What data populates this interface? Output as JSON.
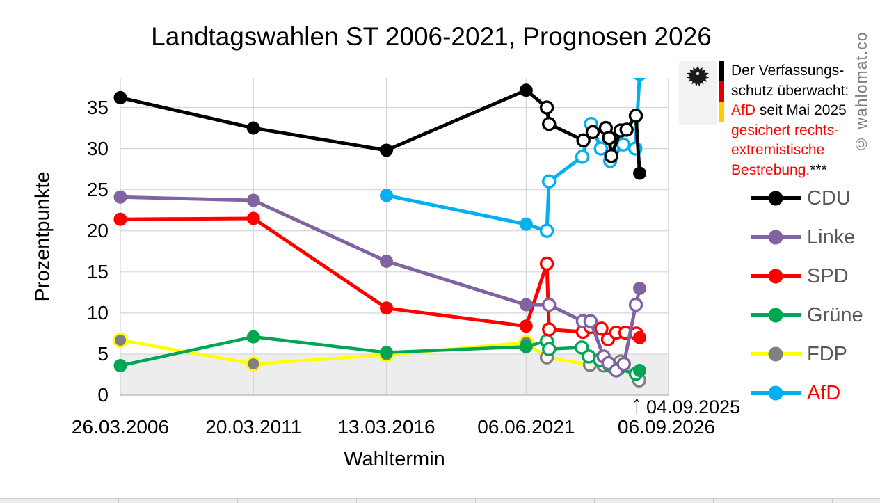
{
  "title": "Landtagswahlen ST 2006-2021, Prognosen 2026",
  "watermark": "© wahlomat.co",
  "note": {
    "icon": "bundesadler-icon",
    "flag_colors": [
      "#000000",
      "#DD0000",
      "#FFCC00"
    ],
    "lines": [
      [
        {
          "t": "Der Verfassungs-",
          "c": "black"
        }
      ],
      [
        {
          "t": "schutz überwacht:",
          "c": "black"
        }
      ],
      [
        {
          "t": "AfD",
          "c": "red"
        },
        {
          "t": " seit Mai 2025",
          "c": "black"
        }
      ],
      [
        {
          "t": "gesichert rechts-",
          "c": "red"
        }
      ],
      [
        {
          "t": "extremistische",
          "c": "red"
        }
      ],
      [
        {
          "t": "Bestrebung.",
          "c": "red"
        },
        {
          "t": "***",
          "c": "black"
        }
      ]
    ]
  },
  "poll_marker_annotation": {
    "arrow": "↑",
    "label": "04.09.2025"
  },
  "chart_data": {
    "type": "line",
    "title": "Landtagswahlen ST 2006-2021, Prognosen 2026",
    "xlabel": "Wahltermin",
    "ylabel": "Prozentpunkte",
    "ylim": [
      0,
      38.6
    ],
    "yticks": [
      0,
      5,
      10,
      15,
      20,
      25,
      30,
      35
    ],
    "grid": true,
    "legend_position": "right",
    "x_ticks": [
      {
        "label": "26.03.2006",
        "f": 0.0
      },
      {
        "label": "20.03.2011",
        "f": 0.2437
      },
      {
        "label": "13.03.2016",
        "f": 0.4873
      },
      {
        "label": "06.06.2021",
        "f": 0.7431
      },
      {
        "label": "06.09.2026",
        "f": 1.0
      }
    ],
    "threshold_band": {
      "from": 0,
      "to": 5,
      "color": "#EDEDED"
    },
    "election_results": {
      "dates": [
        "26.03.2006",
        "20.03.2011",
        "13.03.2016",
        "06.06.2021"
      ],
      "CDU": [
        36.2,
        32.5,
        29.8,
        37.1
      ],
      "Linke": [
        24.1,
        23.7,
        16.3,
        11.0
      ],
      "SPD": [
        21.4,
        21.5,
        10.6,
        8.4
      ],
      "Grüne": [
        3.6,
        7.1,
        5.2,
        5.9
      ],
      "FDP": [
        6.7,
        3.8,
        4.9,
        6.4
      ],
      "AfD": [
        null,
        null,
        24.3,
        20.8
      ]
    },
    "prognosis_2026": {
      "poll_date": "04.09.2025",
      "CDU": 27,
      "AfD": 39,
      "Linke": 13,
      "SPD": 7,
      "Grüne": 3,
      "FDP": 2
    },
    "series": [
      {
        "name": "FDP",
        "color": "#FFFF00",
        "marker_color": "#808080",
        "marker_ring": "#FFFF00",
        "width": 4.5,
        "points": [
          [
            0,
            6.7,
            "e"
          ],
          [
            0.2437,
            3.8,
            "e"
          ],
          [
            0.4873,
            4.9,
            "e"
          ],
          [
            0.7431,
            6.4,
            "e"
          ],
          [
            0.781,
            4.6,
            "p"
          ],
          [
            0.86,
            3.7,
            "p"
          ],
          [
            0.885,
            3.6,
            "p"
          ],
          [
            0.916,
            4.1,
            "p"
          ],
          [
            0.95,
            1.8,
            "p"
          ]
        ]
      },
      {
        "name": "Grüne",
        "color": "#00A651",
        "width": 4.5,
        "points": [
          [
            0,
            3.6,
            "e"
          ],
          [
            0.2437,
            7.1,
            "e"
          ],
          [
            0.4873,
            5.2,
            "e"
          ],
          [
            0.7431,
            5.9,
            "e"
          ],
          [
            0.781,
            6.6,
            "p"
          ],
          [
            0.785,
            5.6,
            "p"
          ],
          [
            0.845,
            5.8,
            "p"
          ],
          [
            0.858,
            4.7,
            "p"
          ],
          [
            0.878,
            4.3,
            "p"
          ],
          [
            0.896,
            3.6,
            "p"
          ],
          [
            0.912,
            3.2,
            "p"
          ],
          [
            0.944,
            2.6,
            "p"
          ],
          [
            0.951,
            3,
            "f"
          ]
        ]
      },
      {
        "name": "SPD",
        "color": "#FF0000",
        "width": 5,
        "points": [
          [
            0,
            21.4,
            "e"
          ],
          [
            0.2437,
            21.5,
            "e"
          ],
          [
            0.4873,
            10.6,
            "e"
          ],
          [
            0.7431,
            8.4,
            "e"
          ],
          [
            0.781,
            16,
            "p"
          ],
          [
            0.785,
            8,
            "p"
          ],
          [
            0.847,
            7.7,
            "p"
          ],
          [
            0.861,
            8.3,
            "p"
          ],
          [
            0.881,
            8.1,
            "p"
          ],
          [
            0.893,
            6.8,
            "p"
          ],
          [
            0.908,
            7.6,
            "p"
          ],
          [
            0.925,
            7.6,
            "p"
          ],
          [
            0.945,
            7.5,
            "p"
          ],
          [
            0.951,
            7,
            "f"
          ]
        ]
      },
      {
        "name": "Linke",
        "color": "#8064A2",
        "width": 5,
        "points": [
          [
            0,
            24.1,
            "e"
          ],
          [
            0.2437,
            23.7,
            "e"
          ],
          [
            0.4873,
            16.3,
            "e"
          ],
          [
            0.7431,
            11,
            "e"
          ],
          [
            0.785,
            11,
            "p"
          ],
          [
            0.847,
            9,
            "p"
          ],
          [
            0.861,
            9,
            "p"
          ],
          [
            0.885,
            4.7,
            "p"
          ],
          [
            0.894,
            3.9,
            "p"
          ],
          [
            0.908,
            3,
            "p"
          ],
          [
            0.922,
            3.8,
            "p"
          ],
          [
            0.944,
            11,
            "p"
          ],
          [
            0.951,
            13,
            "f"
          ]
        ]
      },
      {
        "name": "AfD",
        "color": "#00B0F0",
        "width": 5,
        "points": [
          [
            0.4873,
            24.3,
            "e"
          ],
          [
            0.7431,
            20.8,
            "e"
          ],
          [
            0.781,
            20,
            "p"
          ],
          [
            0.785,
            26,
            "p"
          ],
          [
            0.846,
            29,
            "p"
          ],
          [
            0.862,
            33,
            "p"
          ],
          [
            0.88,
            30,
            "p"
          ],
          [
            0.897,
            28.5,
            "p"
          ],
          [
            0.921,
            30.5,
            "p"
          ],
          [
            0.943,
            30,
            "p"
          ],
          [
            0.951,
            39,
            "f"
          ]
        ]
      },
      {
        "name": "CDU",
        "color": "#000000",
        "width": 5,
        "points": [
          [
            0,
            36.2,
            "e"
          ],
          [
            0.2437,
            32.5,
            "e"
          ],
          [
            0.4873,
            29.8,
            "e"
          ],
          [
            0.7431,
            37.1,
            "e"
          ],
          [
            0.781,
            35,
            "p"
          ],
          [
            0.785,
            33,
            "p"
          ],
          [
            0.848,
            31,
            "p"
          ],
          [
            0.865,
            32,
            "p"
          ],
          [
            0.889,
            32.5,
            "p"
          ],
          [
            0.895,
            31.3,
            "p"
          ],
          [
            0.899,
            29.1,
            "p"
          ],
          [
            0.916,
            32.2,
            "p"
          ],
          [
            0.927,
            32.3,
            "p"
          ],
          [
            0.944,
            34,
            "p"
          ],
          [
            0.951,
            27,
            "f"
          ]
        ]
      }
    ],
    "legend": [
      {
        "label": "CDU",
        "color": "#000000",
        "marker": "#000000",
        "text_color": "#595959"
      },
      {
        "label": "Linke",
        "color": "#8064A2",
        "marker": "#8064A2",
        "text_color": "#595959"
      },
      {
        "label": "SPD",
        "color": "#FF0000",
        "marker": "#FF0000",
        "text_color": "#595959"
      },
      {
        "label": "Grüne",
        "color": "#00A651",
        "marker": "#00A651",
        "text_color": "#595959"
      },
      {
        "label": "FDP",
        "color": "#FFFF00",
        "marker": "#808080",
        "text_color": "#595959"
      },
      {
        "label": "AfD",
        "color": "#00B0F0",
        "marker": "#00B0F0",
        "text_color": "#FF0000"
      }
    ]
  }
}
